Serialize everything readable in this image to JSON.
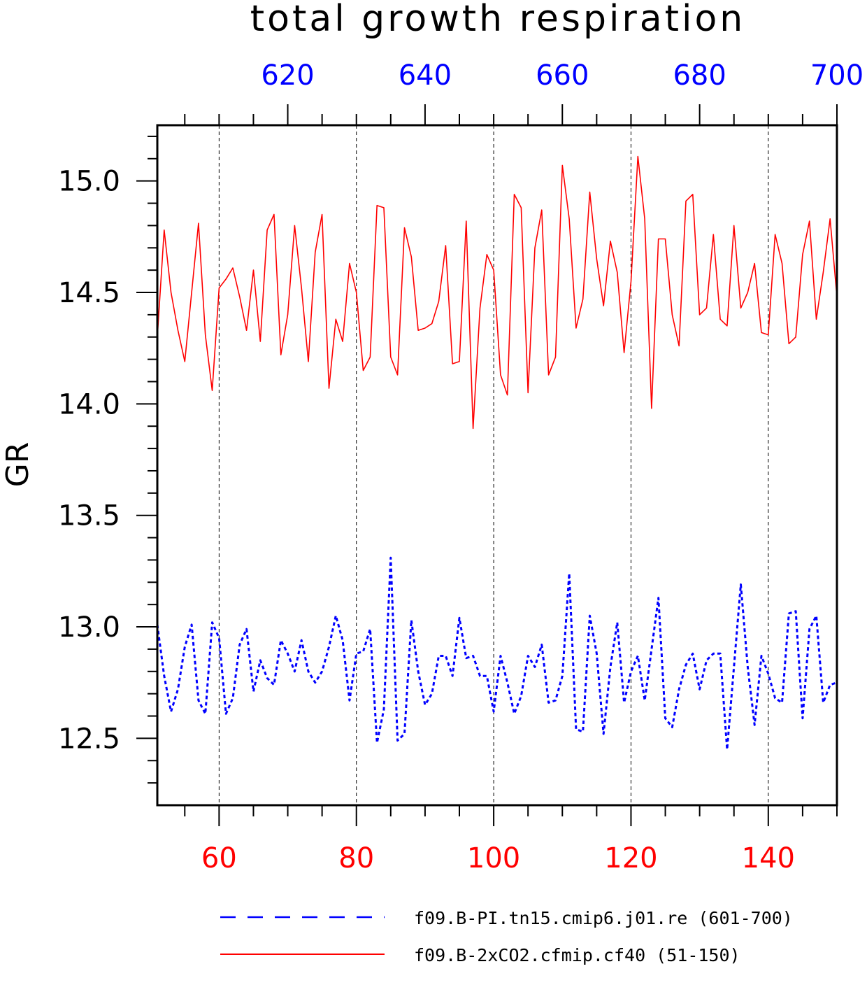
{
  "chart_data": {
    "type": "line",
    "title": "total growth respiration",
    "ylabel": "GR",
    "ylim": [
      12.2,
      15.25
    ],
    "yticks": [
      "12.5",
      "13.0",
      "13.5",
      "14.0",
      "14.5",
      "15.0"
    ],
    "ytick_values": [
      12.5,
      13.0,
      13.5,
      14.0,
      14.5,
      15.0
    ],
    "bottom_axis": {
      "range": [
        51,
        150
      ],
      "ticks": [
        "60",
        "80",
        "100",
        "120",
        "140"
      ],
      "tick_values": [
        60,
        80,
        100,
        120,
        140
      ],
      "color": "#ff0000"
    },
    "top_axis": {
      "range": [
        601,
        700
      ],
      "ticks": [
        "620",
        "640",
        "660",
        "680",
        "700"
      ],
      "tick_values": [
        620,
        640,
        660,
        680,
        700
      ],
      "color": "#0000ff"
    },
    "grid": "vertical-dashed",
    "legend_position": "bottom",
    "series": [
      {
        "name": "f09.B-PI.tn15.cmip6.j01.re (601-700)",
        "axis": "top",
        "color": "#0000ff",
        "style": "dashed",
        "x_start": 601,
        "values": [
          13.01,
          12.78,
          12.62,
          12.72,
          12.91,
          13.01,
          12.67,
          12.61,
          13.02,
          12.95,
          12.61,
          12.68,
          12.92,
          12.99,
          12.71,
          12.85,
          12.77,
          12.74,
          12.94,
          12.88,
          12.8,
          12.94,
          12.8,
          12.75,
          12.8,
          12.91,
          13.05,
          12.94,
          12.67,
          12.88,
          12.89,
          12.99,
          12.48,
          12.63,
          13.31,
          12.49,
          12.52,
          13.03,
          12.8,
          12.65,
          12.7,
          12.87,
          12.87,
          12.78,
          13.04,
          12.86,
          12.87,
          12.78,
          12.78,
          12.62,
          12.87,
          12.75,
          12.61,
          12.69,
          12.87,
          12.82,
          12.92,
          12.66,
          12.67,
          12.78,
          13.24,
          12.54,
          12.53,
          13.05,
          12.88,
          12.52,
          12.82,
          13.02,
          12.66,
          12.8,
          12.87,
          12.67,
          12.9,
          13.13,
          12.59,
          12.55,
          12.72,
          12.83,
          12.88,
          12.72,
          12.85,
          12.88,
          12.88,
          12.45,
          12.82,
          13.19,
          12.82,
          12.56,
          12.87,
          12.79,
          12.68,
          12.66,
          13.06,
          13.07,
          12.59,
          12.99,
          13.05,
          12.66,
          12.74,
          12.75
        ]
      },
      {
        "name": "f09.B-2xCO2.cfmip.cf40 (51-150)",
        "axis": "bottom",
        "color": "#ff0000",
        "style": "solid",
        "x_start": 51,
        "values": [
          14.3,
          14.78,
          14.5,
          14.33,
          14.19,
          14.5,
          14.81,
          14.31,
          14.06,
          14.52,
          14.56,
          14.61,
          14.48,
          14.33,
          14.6,
          14.28,
          14.78,
          14.85,
          14.22,
          14.4,
          14.8,
          14.52,
          14.19,
          14.68,
          14.85,
          14.07,
          14.38,
          14.28,
          14.63,
          14.5,
          14.15,
          14.21,
          14.89,
          14.88,
          14.21,
          14.13,
          14.79,
          14.66,
          14.33,
          14.34,
          14.36,
          14.46,
          14.71,
          14.18,
          14.19,
          14.82,
          13.89,
          14.43,
          14.67,
          14.6,
          14.13,
          14.04,
          14.94,
          14.88,
          14.05,
          14.7,
          14.87,
          14.13,
          14.21,
          15.07,
          14.83,
          14.34,
          14.47,
          14.95,
          14.65,
          14.44,
          14.73,
          14.59,
          14.23,
          14.55,
          15.11,
          14.83,
          13.98,
          14.74,
          14.74,
          14.4,
          14.26,
          14.91,
          14.94,
          14.4,
          14.43,
          14.76,
          14.38,
          14.35,
          14.8,
          14.43,
          14.5,
          14.63,
          14.32,
          14.31,
          14.76,
          14.63,
          14.27,
          14.3,
          14.67,
          14.82,
          14.38,
          14.59,
          14.83,
          14.48
        ]
      }
    ]
  }
}
